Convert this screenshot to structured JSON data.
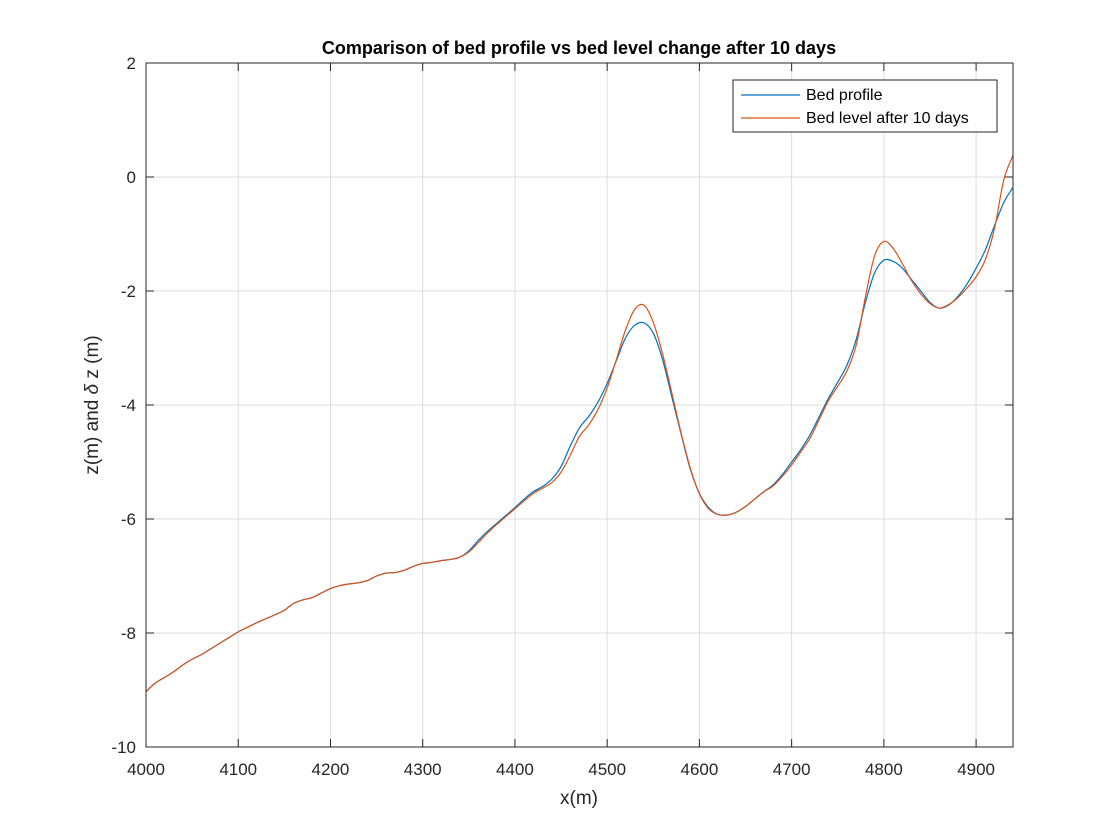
{
  "chart_data": {
    "type": "line",
    "title": "Comparison of bed profile vs bed level change after 10 days",
    "xlabel": "x(m)",
    "ylabel_parts": [
      "z(m) and ",
      "δ",
      " z (m)"
    ],
    "xlim": [
      4000,
      4940
    ],
    "ylim": [
      -10,
      2
    ],
    "xticks": [
      4000,
      4100,
      4200,
      4300,
      4400,
      4500,
      4600,
      4700,
      4800,
      4900
    ],
    "yticks": [
      2,
      0,
      -2,
      -4,
      -6,
      -8,
      -10
    ],
    "grid": true,
    "legend_position": "top-right",
    "series": [
      {
        "name": "Bed profile",
        "color": "#0072BD",
        "x": [
          4000,
          4010,
          4020,
          4030,
          4040,
          4050,
          4060,
          4070,
          4080,
          4090,
          4100,
          4110,
          4120,
          4130,
          4140,
          4150,
          4160,
          4170,
          4180,
          4190,
          4200,
          4210,
          4220,
          4230,
          4240,
          4250,
          4260,
          4270,
          4280,
          4290,
          4300,
          4310,
          4320,
          4330,
          4340,
          4350,
          4360,
          4370,
          4380,
          4390,
          4400,
          4410,
          4420,
          4430,
          4440,
          4450,
          4460,
          4470,
          4480,
          4490,
          4500,
          4510,
          4520,
          4530,
          4540,
          4550,
          4560,
          4570,
          4580,
          4590,
          4600,
          4610,
          4620,
          4630,
          4640,
          4650,
          4660,
          4670,
          4680,
          4690,
          4700,
          4710,
          4720,
          4730,
          4740,
          4750,
          4760,
          4770,
          4780,
          4790,
          4800,
          4810,
          4820,
          4830,
          4840,
          4850,
          4860,
          4870,
          4880,
          4890,
          4900,
          4910,
          4920,
          4930,
          4940
        ],
        "y": [
          -9.03,
          -8.88,
          -8.78,
          -8.68,
          -8.56,
          -8.46,
          -8.38,
          -8.28,
          -8.18,
          -8.08,
          -7.98,
          -7.9,
          -7.82,
          -7.75,
          -7.68,
          -7.6,
          -7.48,
          -7.42,
          -7.38,
          -7.3,
          -7.22,
          -7.17,
          -7.14,
          -7.12,
          -7.08,
          -7.0,
          -6.95,
          -6.94,
          -6.9,
          -6.83,
          -6.78,
          -6.76,
          -6.73,
          -6.71,
          -6.67,
          -6.56,
          -6.38,
          -6.22,
          -6.08,
          -5.94,
          -5.8,
          -5.65,
          -5.52,
          -5.43,
          -5.3,
          -5.08,
          -4.72,
          -4.4,
          -4.2,
          -3.95,
          -3.62,
          -3.22,
          -2.82,
          -2.6,
          -2.56,
          -2.74,
          -3.2,
          -3.85,
          -4.5,
          -5.12,
          -5.55,
          -5.8,
          -5.92,
          -5.93,
          -5.88,
          -5.78,
          -5.65,
          -5.52,
          -5.4,
          -5.22,
          -5.0,
          -4.78,
          -4.52,
          -4.2,
          -3.88,
          -3.6,
          -3.3,
          -2.85,
          -2.2,
          -1.68,
          -1.46,
          -1.48,
          -1.6,
          -1.8,
          -2.0,
          -2.2,
          -2.3,
          -2.25,
          -2.1,
          -1.88,
          -1.6,
          -1.28,
          -0.85,
          -0.45,
          -0.18
        ]
      },
      {
        "name": "Bed level after 10 days",
        "color": "#D95319",
        "x": [
          4000,
          4010,
          4020,
          4030,
          4040,
          4050,
          4060,
          4070,
          4080,
          4090,
          4100,
          4110,
          4120,
          4130,
          4140,
          4150,
          4160,
          4170,
          4180,
          4190,
          4200,
          4210,
          4220,
          4230,
          4240,
          4250,
          4260,
          4270,
          4280,
          4290,
          4300,
          4310,
          4320,
          4330,
          4340,
          4350,
          4360,
          4370,
          4380,
          4390,
          4400,
          4410,
          4420,
          4430,
          4440,
          4450,
          4460,
          4470,
          4480,
          4490,
          4500,
          4510,
          4520,
          4530,
          4540,
          4550,
          4560,
          4570,
          4580,
          4590,
          4600,
          4610,
          4620,
          4630,
          4640,
          4650,
          4660,
          4670,
          4680,
          4690,
          4700,
          4710,
          4720,
          4730,
          4740,
          4750,
          4760,
          4770,
          4780,
          4790,
          4800,
          4810,
          4820,
          4830,
          4840,
          4850,
          4860,
          4870,
          4880,
          4890,
          4900,
          4910,
          4920,
          4930,
          4940
        ],
        "y": [
          -9.03,
          -8.88,
          -8.78,
          -8.68,
          -8.56,
          -8.46,
          -8.38,
          -8.28,
          -8.18,
          -8.08,
          -7.98,
          -7.9,
          -7.82,
          -7.75,
          -7.68,
          -7.6,
          -7.48,
          -7.42,
          -7.38,
          -7.3,
          -7.22,
          -7.17,
          -7.14,
          -7.12,
          -7.08,
          -7.0,
          -6.95,
          -6.94,
          -6.9,
          -6.83,
          -6.78,
          -6.76,
          -6.73,
          -6.71,
          -6.67,
          -6.58,
          -6.42,
          -6.25,
          -6.1,
          -5.96,
          -5.82,
          -5.68,
          -5.55,
          -5.46,
          -5.36,
          -5.18,
          -4.88,
          -4.55,
          -4.35,
          -4.08,
          -3.7,
          -3.2,
          -2.68,
          -2.32,
          -2.25,
          -2.55,
          -3.1,
          -3.78,
          -4.48,
          -5.1,
          -5.56,
          -5.82,
          -5.92,
          -5.93,
          -5.88,
          -5.78,
          -5.65,
          -5.52,
          -5.42,
          -5.25,
          -5.05,
          -4.82,
          -4.58,
          -4.25,
          -3.92,
          -3.67,
          -3.4,
          -2.95,
          -2.1,
          -1.38,
          -1.13,
          -1.25,
          -1.52,
          -1.82,
          -2.05,
          -2.22,
          -2.3,
          -2.24,
          -2.12,
          -1.95,
          -1.75,
          -1.45,
          -0.9,
          -0.05,
          0.38
        ]
      }
    ]
  }
}
